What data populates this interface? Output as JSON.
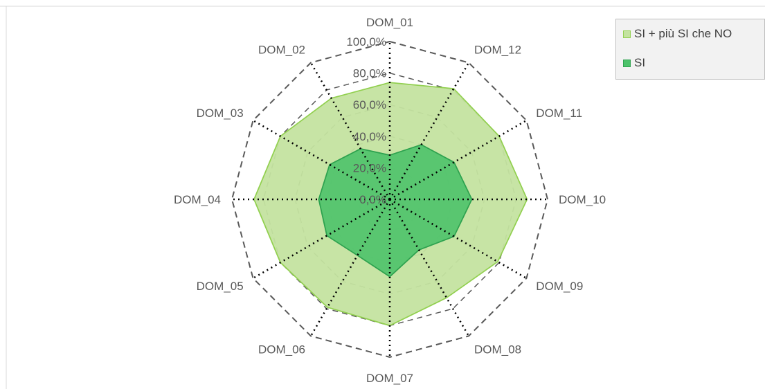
{
  "chart_data": {
    "type": "radar",
    "categories": [
      "DOM_01",
      "DOM_12",
      "DOM_11",
      "DOM_10",
      "DOM_09",
      "DOM_08",
      "DOM_07",
      "DOM_06",
      "DOM_05",
      "DOM_04",
      "DOM_03",
      "DOM_02"
    ],
    "tick_labels": [
      "0,0%",
      "20,0%",
      "40,0%",
      "60,0%",
      "80,0%",
      "100,0%"
    ],
    "ylim": [
      0,
      100
    ],
    "grid": true,
    "legend_position": "top-right",
    "series": [
      {
        "name": "SI + più SI che NO",
        "color_fill": "#c4e3a0",
        "color_line": "#92d050",
        "values": [
          74,
          81,
          80,
          87,
          79,
          72,
          80,
          79,
          80,
          86,
          80,
          74
        ]
      },
      {
        "name": "SI",
        "color_fill": "#4cc26a",
        "color_line": "#2ea24f",
        "values": [
          28,
          40,
          47,
          52,
          47,
          37,
          49,
          41,
          46,
          45,
          44,
          37
        ]
      }
    ]
  },
  "legend": {
    "item1": "SI + più SI che NO",
    "item2": "SI"
  }
}
